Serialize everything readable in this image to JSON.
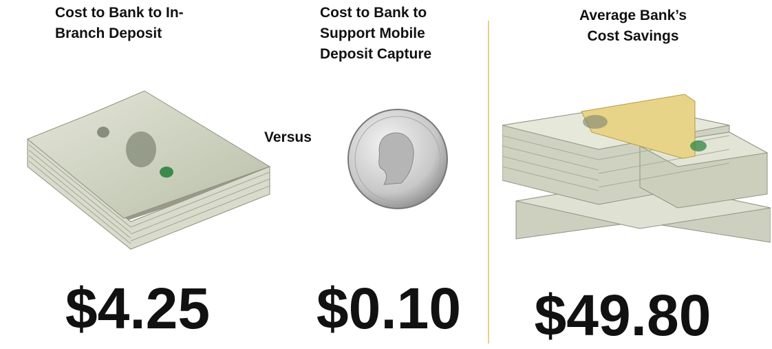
{
  "panels": [
    {
      "heading": [
        "Cost to Bank to In-",
        "Branch Deposit"
      ],
      "amount": "$4.25"
    },
    {
      "heading": [
        "Cost to Bank to",
        "Support Mobile",
        "Deposit Capture"
      ],
      "amount": "$0.10"
    },
    {
      "heading": [
        "Average Bank’s",
        "Cost Savings"
      ],
      "amount": "$49.80"
    }
  ],
  "versus": "Versus"
}
